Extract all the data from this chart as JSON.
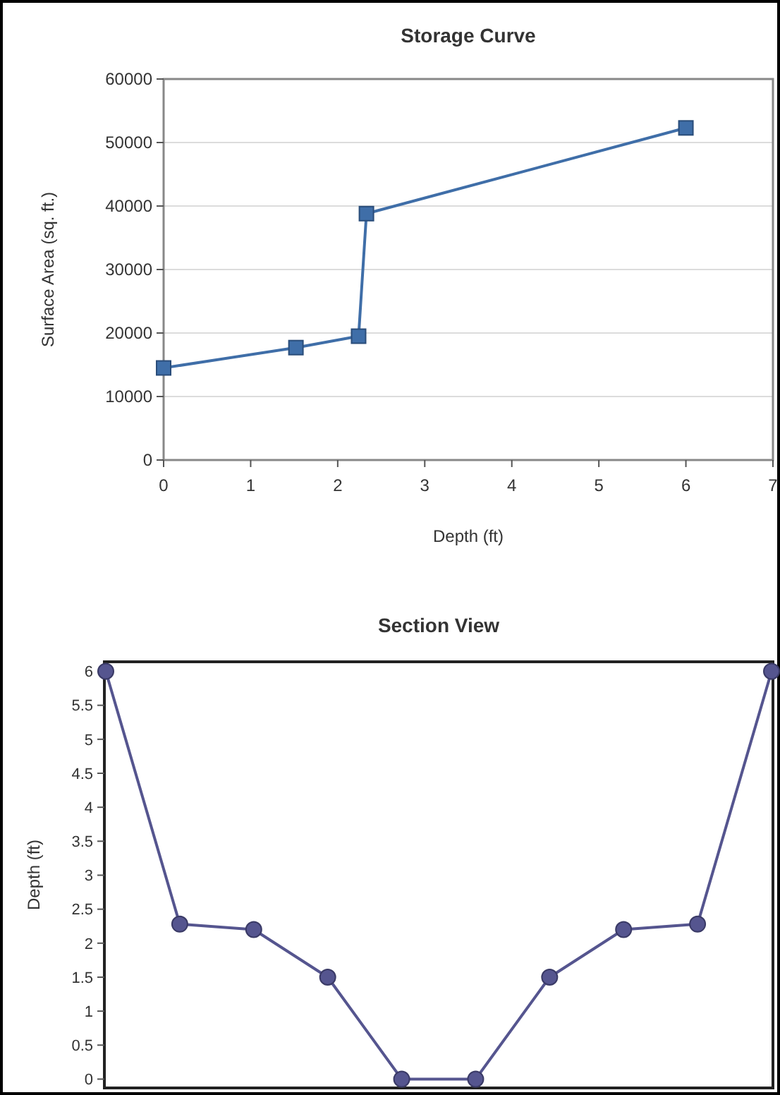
{
  "chart_data": [
    {
      "type": "line",
      "title": "Storage Curve",
      "xlabel": "Depth (ft)",
      "ylabel": "Surface Area (sq. ft.)",
      "x": [
        0,
        1.52,
        2.24,
        2.33,
        6
      ],
      "series": [
        {
          "color": "#3f6ea8",
          "values": [
            14500,
            17700,
            19500,
            38800,
            52300
          ]
        }
      ],
      "xlim": [
        0,
        7
      ],
      "xticks": [
        0,
        1,
        2,
        3,
        4,
        5,
        6,
        7
      ],
      "ylim": [
        0,
        60000
      ],
      "yticks": [
        0,
        10000,
        20000,
        30000,
        40000,
        50000,
        60000
      ],
      "grid": "y",
      "marker": "square",
      "line_style": "solid"
    },
    {
      "type": "line",
      "title": "Section View",
      "ylabel": "Depth (ft)",
      "categories": [
        null,
        null,
        null,
        null,
        null,
        null,
        null,
        null,
        null,
        null
      ],
      "series": [
        {
          "color": "#55558f",
          "values": [
            6,
            2.28,
            2.2,
            1.5,
            0,
            0,
            1.5,
            2.2,
            2.28,
            6
          ]
        }
      ],
      "ylim": [
        -0.13,
        6.14
      ],
      "yticks": [
        0,
        0.5,
        1,
        1.5,
        2,
        2.5,
        3,
        3.5,
        4,
        4.5,
        5,
        5.5,
        6
      ],
      "tick_labels": "y",
      "marker": "circle",
      "line_style": "solid"
    }
  ]
}
